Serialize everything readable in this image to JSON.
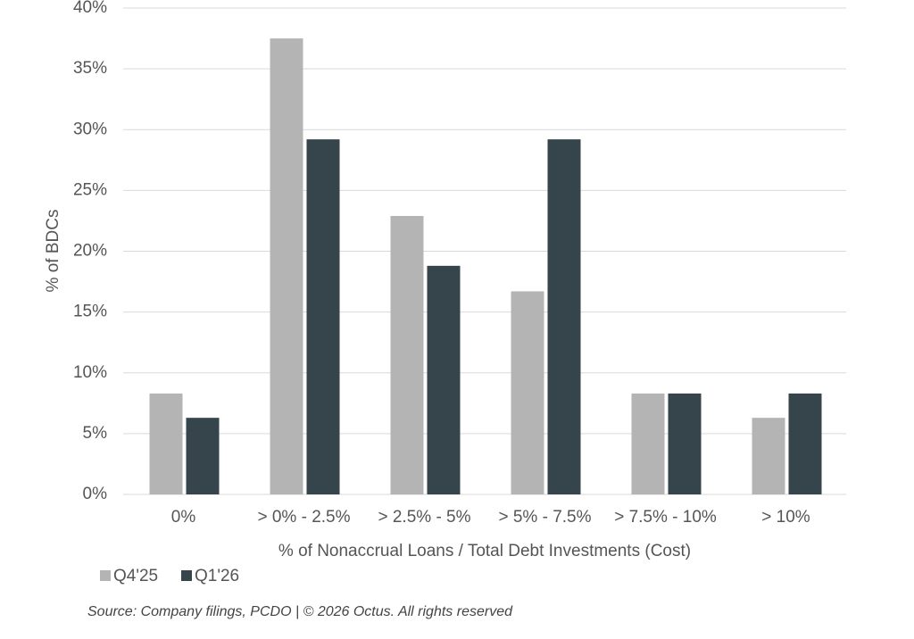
{
  "chart_data": {
    "type": "bar",
    "xlabel": "% of Nonaccrual Loans / Total Debt Investments (Cost)",
    "ylabel": "% of BDCs",
    "source": "Source: Company filings, PCDO | © 2026 Octus. All rights reserved",
    "categories": [
      "0%",
      "> 0% - 2.5%",
      "> 2.5% - 5%",
      "> 5% - 7.5%",
      "> 7.5% - 10%",
      "> 10%"
    ],
    "series": [
      {
        "name": "Q4'25",
        "color": "#b4b4b4",
        "values": [
          8.3,
          37.5,
          22.9,
          16.7,
          8.3,
          6.3
        ]
      },
      {
        "name": "Q1'26",
        "color": "#36454b",
        "values": [
          6.3,
          29.2,
          18.8,
          29.2,
          8.3,
          8.3
        ]
      }
    ],
    "ylim": [
      0,
      40
    ],
    "yticks": [
      {
        "value": 0,
        "label": "0%"
      },
      {
        "value": 5,
        "label": "5%"
      },
      {
        "value": 10,
        "label": "10%"
      },
      {
        "value": 15,
        "label": "15%"
      },
      {
        "value": 20,
        "label": "20%"
      },
      {
        "value": 25,
        "label": "25%"
      },
      {
        "value": 30,
        "label": "30%"
      },
      {
        "value": 35,
        "label": "35%"
      },
      {
        "value": 40,
        "label": "40%"
      }
    ],
    "grid": true
  }
}
